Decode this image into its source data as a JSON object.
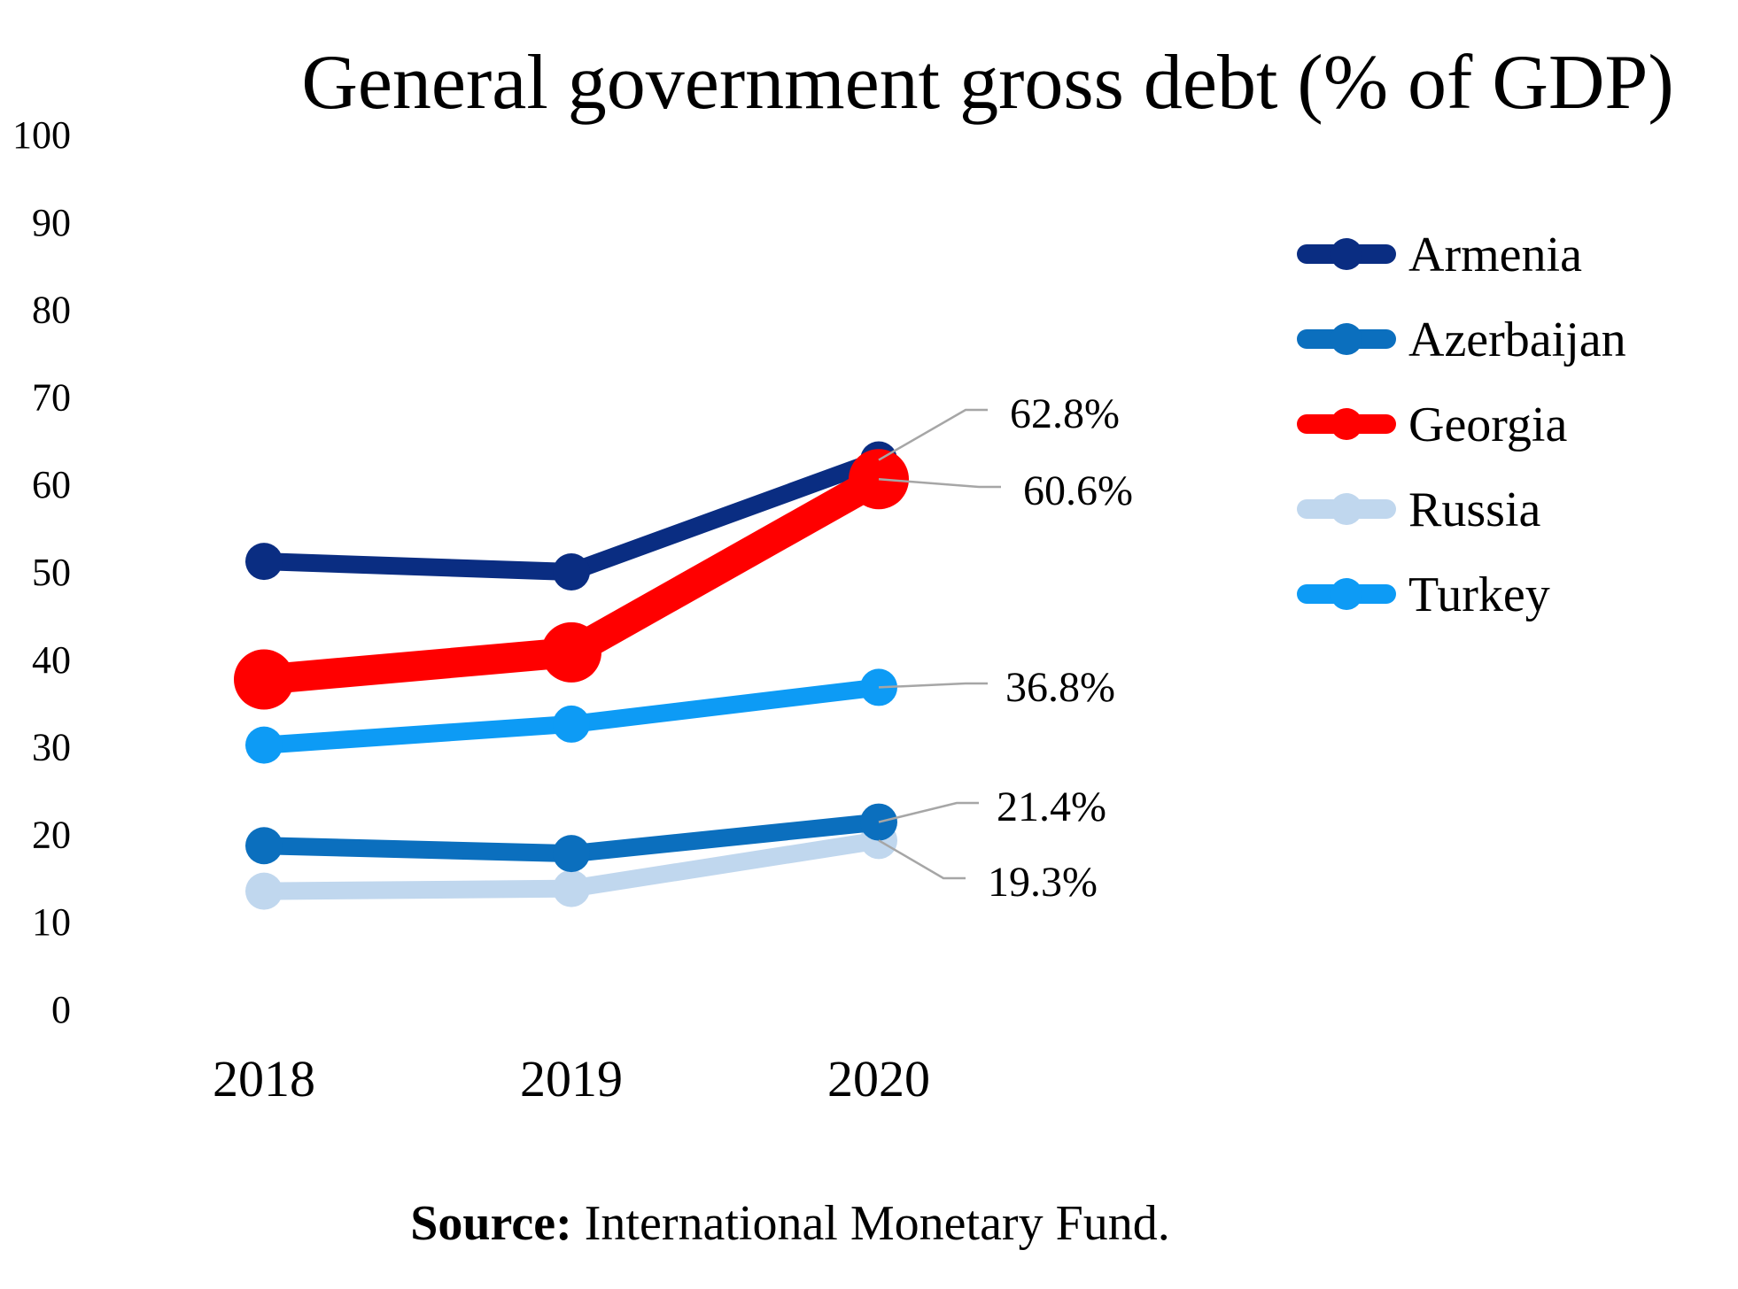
{
  "chart_data": {
    "type": "line",
    "title": "General government gross debt (% of GDP)",
    "xlabel": "",
    "ylabel": "",
    "categories": [
      "2018",
      "2019",
      "2020"
    ],
    "ylim": [
      0,
      100
    ],
    "yticks": [
      0,
      10,
      20,
      30,
      40,
      50,
      60,
      70,
      80,
      90,
      100
    ],
    "grid": false,
    "legend_position": "right",
    "series": [
      {
        "name": "Armenia",
        "values": [
          51.2,
          50.0,
          62.8
        ],
        "color": "#0a2d82",
        "end_label": "62.8%"
      },
      {
        "name": "Azerbaijan",
        "values": [
          18.7,
          17.8,
          21.4
        ],
        "color": "#0b6fbe",
        "end_label": "21.4%"
      },
      {
        "name": "Georgia",
        "values": [
          37.7,
          40.8,
          60.6
        ],
        "color": "#ff0000",
        "end_label": "60.6%"
      },
      {
        "name": "Russia",
        "values": [
          13.5,
          13.8,
          19.3
        ],
        "color": "#c0d7ee",
        "end_label": "19.3%"
      },
      {
        "name": "Turkey",
        "values": [
          30.2,
          32.6,
          36.8
        ],
        "color": "#0d9bf5",
        "end_label": "36.8%"
      }
    ]
  },
  "source": {
    "label": "Source:",
    "text": " International Monetary Fund."
  }
}
